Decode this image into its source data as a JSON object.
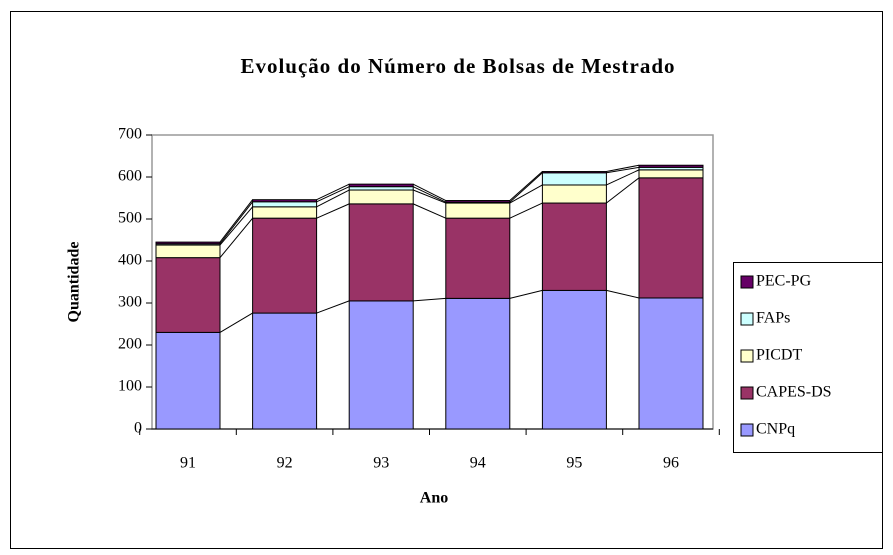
{
  "chart_data": {
    "type": "stacked-bar",
    "title": "Evolução do Número de Bolsas de Mestrado",
    "x_label": "Ano",
    "y_label": "Quantidade",
    "categories": [
      "91",
      "92",
      "93",
      "94",
      "95",
      "96"
    ],
    "series": [
      {
        "name": "CNPq",
        "color": "#9999ff",
        "values": [
          230,
          276,
          305,
          311,
          330,
          312
        ]
      },
      {
        "name": "CAPES-DS",
        "color": "#993366",
        "values": [
          178,
          226,
          231,
          191,
          208,
          286
        ]
      },
      {
        "name": "PICDT",
        "color": "#ffffcc",
        "values": [
          30,
          27,
          33,
          36,
          43,
          19
        ]
      },
      {
        "name": "FAPs",
        "color": "#ccffff",
        "values": [
          3,
          12,
          8,
          2,
          29,
          6
        ]
      },
      {
        "name": "PEC-PG",
        "color": "#660066",
        "values": [
          4,
          5,
          6,
          4,
          3,
          5
        ]
      }
    ],
    "ylim": [
      0,
      700
    ],
    "yticks": [
      0,
      100,
      200,
      300,
      400,
      500,
      600,
      700
    ],
    "legend": "right"
  }
}
